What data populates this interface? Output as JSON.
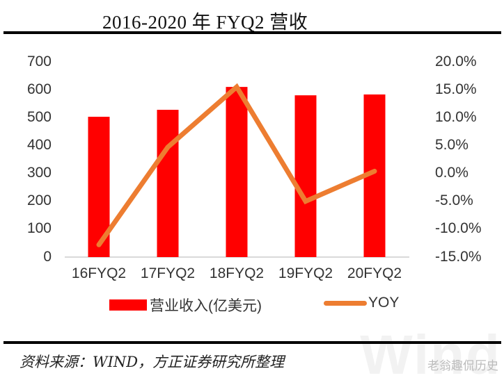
{
  "title": "2016-2020 年 FYQ2 营收",
  "source": "资料来源：WIND，方正证券研究所整理",
  "watermark": "老翁趣侃历史",
  "wind_watermark": "Wind",
  "colors": {
    "bar": "#ff0000",
    "line": "#ed7d31",
    "axis": "#d9d9d9",
    "text": "#333333"
  },
  "left_axis": {
    "ticks": [
      "700",
      "600",
      "500",
      "400",
      "300",
      "200",
      "100",
      "0"
    ]
  },
  "right_axis": {
    "ticks": [
      "20.0%",
      "15.0%",
      "10.0%",
      "5.0%",
      "0.0%",
      "-5.0%",
      "-10.0%",
      "-15.0%"
    ]
  },
  "x_axis": {
    "labels": [
      "16FYQ2",
      "17FYQ2",
      "18FYQ2",
      "19FYQ2",
      "20FYQ2"
    ]
  },
  "legend": {
    "bar_label": "营业收入(亿美元)",
    "line_label": "YOY"
  },
  "chart_data": {
    "type": "bar",
    "title": "2016-2020 年 FYQ2 营收",
    "categories": [
      "16FYQ2",
      "17FYQ2",
      "18FYQ2",
      "19FYQ2",
      "20FYQ2"
    ],
    "series": [
      {
        "name": "营业收入(亿美元)",
        "type": "bar",
        "axis": "left",
        "values": [
          503,
          528,
          610,
          580,
          583
        ]
      },
      {
        "name": "YOY",
        "type": "line",
        "axis": "right",
        "unit": "%",
        "values": [
          -12.8,
          4.7,
          15.5,
          -5.0,
          0.4
        ]
      }
    ],
    "xlabel": "",
    "ylabel": "",
    "ylim": [
      0,
      700
    ],
    "y2lim": [
      -15,
      20
    ],
    "grid": false,
    "legend_position": "bottom"
  }
}
